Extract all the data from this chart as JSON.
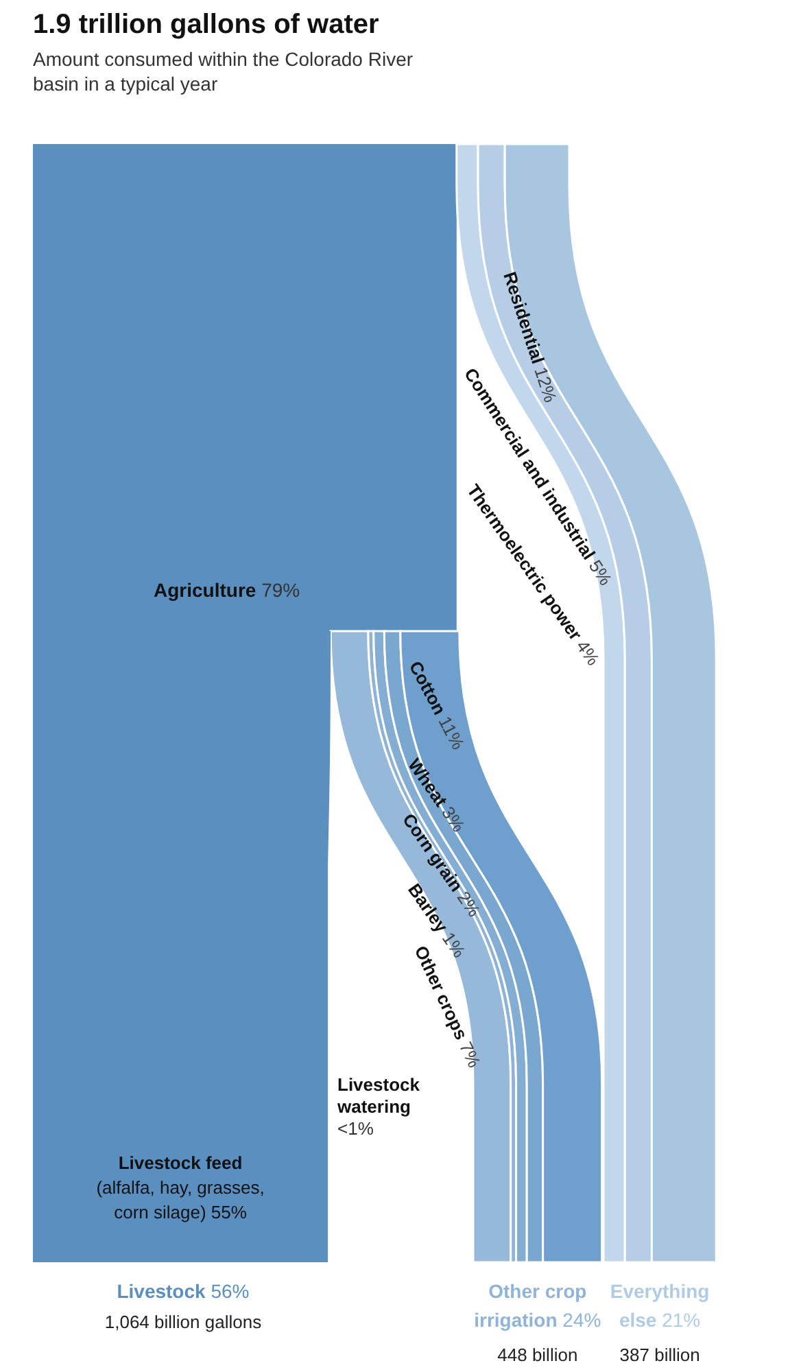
{
  "chart_data": {
    "type": "other",
    "title": "1.9 trillion gallons of water",
    "subtitle": "Amount consumed within the Colorado River basin in a typical year",
    "categories": [
      "Agriculture",
      "Residential",
      "Commercial and industrial",
      "Thermoelectric power",
      "Cotton",
      "Wheat",
      "Corn grain",
      "Barley",
      "Other crops",
      "Livestock\nwatering",
      "Livestock feed\n(alfalfa, hay, grasses,\ncorn silage)",
      "Livestock",
      "Other crop irrigation",
      "Everything else"
    ],
    "values": [
      79,
      12,
      5,
      4,
      11,
      3,
      2,
      1,
      7,
      null,
      55,
      56,
      24,
      21
    ],
    "value_labels": [
      "79%",
      "12%",
      "5%",
      "4%",
      "11%",
      "3%",
      "2%",
      "1%",
      "7%",
      "<1%",
      "55%",
      "56%",
      "24%",
      "21%"
    ],
    "colors": [
      "#5b8fc0",
      "#a9c6e1",
      "#b5cee6",
      "#c2d7eb",
      "#6f9fcc",
      "#7aa7d0",
      "#84add4",
      "#8db3d7",
      "#96b9da",
      "#5b8fc0",
      "#5b8fc0",
      "#5b8fc0",
      "#8fb4d8",
      "#b0cbe4"
    ],
    "annotations": [
      "1,064 billion gallons",
      "448 billion",
      "387 billion"
    ]
  }
}
